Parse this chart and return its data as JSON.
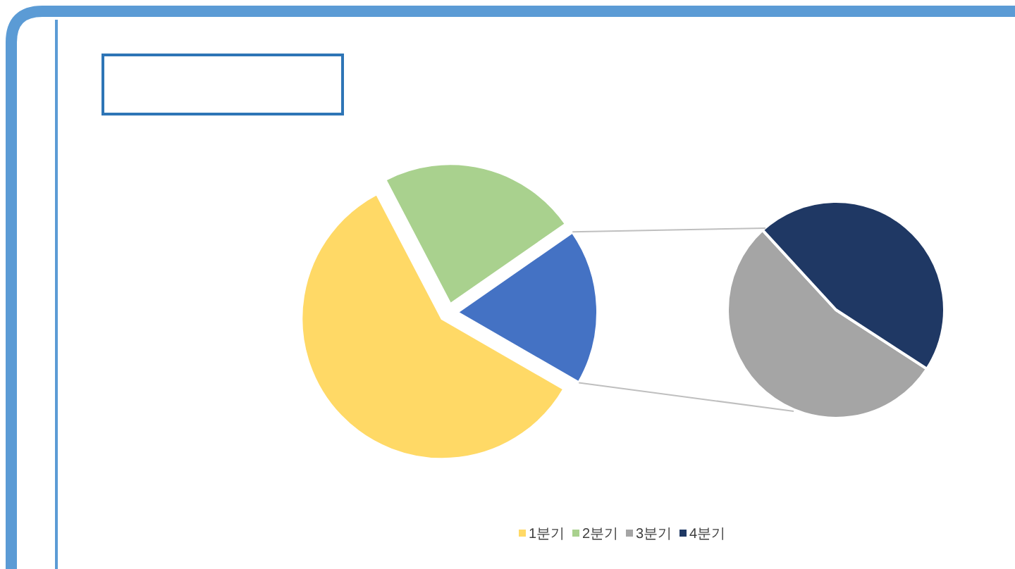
{
  "chart_data": [
    {
      "type": "pie",
      "categories": [
        "1분기",
        "2분기",
        null
      ],
      "values": [
        59,
        23,
        18
      ],
      "colors": [
        "#ffd966",
        "#a9d18e",
        "#4472c4"
      ],
      "legend": "bottom"
    },
    {
      "type": "pie",
      "categories": [
        "3분기",
        "4분기"
      ],
      "values": [
        54,
        46
      ],
      "colors": [
        "#a5a5a5",
        "#1f3864"
      ],
      "legend": "bottom"
    }
  ]
}
